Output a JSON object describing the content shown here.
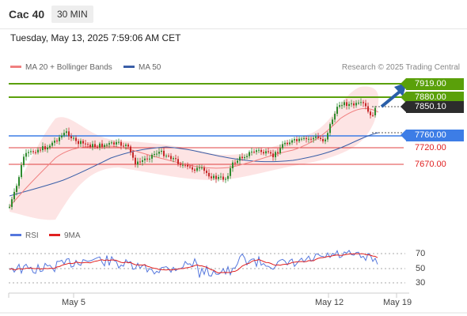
{
  "header": {
    "title": "Cac 40",
    "timeframe": "30 MIN"
  },
  "timestamp": "Tuesday, May 13, 2025 7:59:06 AM CET",
  "legend": {
    "ma20": {
      "label": "MA 20 + Bollinger Bands",
      "color": "#f08080"
    },
    "ma50": {
      "label": "MA 50",
      "color": "#3a5fa8"
    }
  },
  "research": "Research © 2025 Trading Central",
  "levels": [
    {
      "value": "7919.00",
      "style": "green"
    },
    {
      "value": "7880.00",
      "style": "green"
    },
    {
      "value": "7850.10",
      "style": "dark"
    },
    {
      "value": "7760.00",
      "style": "blue"
    },
    {
      "value": "7720.00",
      "style": "red"
    },
    {
      "value": "7670.00",
      "style": "red"
    }
  ],
  "rsi_legend": {
    "rsi": {
      "label": "RSI",
      "color": "#5577dd"
    },
    "ma9": {
      "label": "9MA",
      "color": "#e02020"
    }
  },
  "rsi_levels": [
    "70",
    "50",
    "30"
  ],
  "x_labels": [
    "May 5",
    "May 12",
    "May 19"
  ],
  "colors": {
    "up": "#2e8b2e",
    "down": "#c62828",
    "support": "#e04040",
    "resistance": "#5aa00a",
    "pivot": "#3d7de6",
    "arrow": "#2a5fa8",
    "bands": "#fde4e4"
  }
}
